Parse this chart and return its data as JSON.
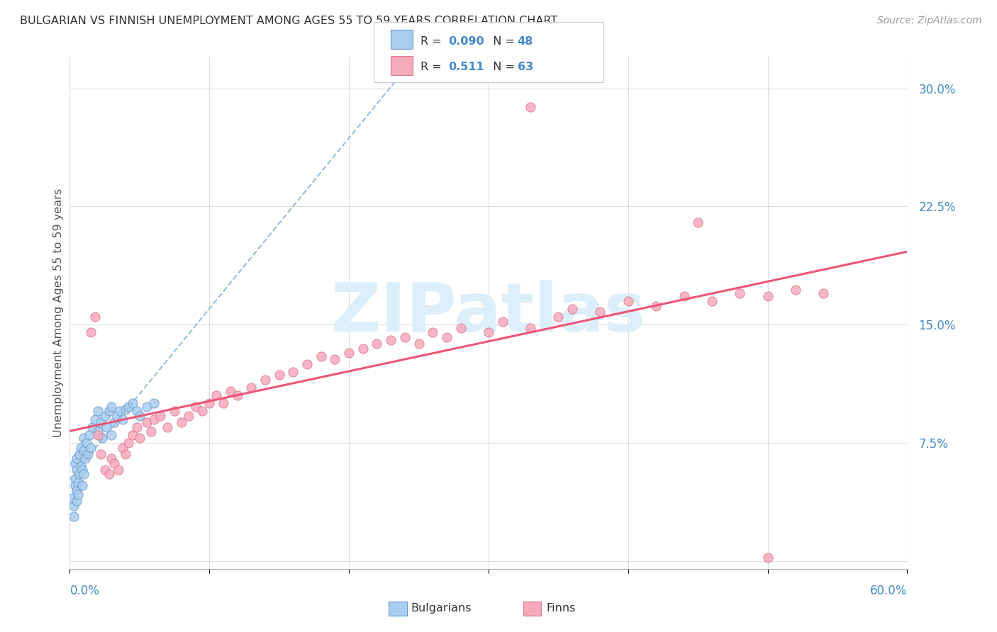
{
  "title": "BULGARIAN VS FINNISH UNEMPLOYMENT AMONG AGES 55 TO 59 YEARS CORRELATION CHART",
  "source": "Source: ZipAtlas.com",
  "ylabel": "Unemployment Among Ages 55 to 59 years",
  "xtick_left": "0.0%",
  "xtick_right": "60.0%",
  "xlim": [
    0.0,
    0.6
  ],
  "ylim": [
    -0.005,
    0.32
  ],
  "ytick_vals": [
    0.0,
    0.075,
    0.15,
    0.225,
    0.3
  ],
  "ytick_labels": [
    "",
    "7.5%",
    "15.0%",
    "22.5%",
    "30.0%"
  ],
  "grid_color": "#dddddd",
  "bg_color": "#ffffff",
  "bulgarians_face": "#aaccee",
  "bulgarians_edge": "#6699cc",
  "finns_face": "#f5aabb",
  "finns_edge": "#dd7788",
  "bulg_line_color": "#99bbdd",
  "finn_line_color": "#ee5577",
  "label_color": "#4488cc",
  "title_color": "#333333",
  "source_color": "#999999",
  "ylabel_color": "#555555",
  "watermark_color": "#dceefa",
  "legend_R_bulg": "0.090",
  "legend_N_bulg": "48",
  "legend_R_finn": "0.511",
  "legend_N_finn": "63",
  "bulgarians_x": [
    0.002,
    0.003,
    0.003,
    0.004,
    0.004,
    0.004,
    0.005,
    0.005,
    0.005,
    0.005,
    0.006,
    0.006,
    0.007,
    0.007,
    0.008,
    0.008,
    0.009,
    0.009,
    0.01,
    0.01,
    0.01,
    0.011,
    0.012,
    0.013,
    0.014,
    0.015,
    0.016,
    0.018,
    0.02,
    0.02,
    0.022,
    0.023,
    0.025,
    0.026,
    0.028,
    0.03,
    0.03,
    0.032,
    0.034,
    0.036,
    0.038,
    0.04,
    0.042,
    0.045,
    0.048,
    0.05,
    0.055,
    0.06
  ],
  "bulgarians_y": [
    0.04,
    0.035,
    0.028,
    0.052,
    0.048,
    0.062,
    0.038,
    0.045,
    0.058,
    0.065,
    0.05,
    0.042,
    0.068,
    0.055,
    0.06,
    0.072,
    0.058,
    0.048,
    0.07,
    0.078,
    0.055,
    0.065,
    0.075,
    0.068,
    0.08,
    0.072,
    0.085,
    0.09,
    0.095,
    0.082,
    0.088,
    0.078,
    0.092,
    0.085,
    0.095,
    0.08,
    0.098,
    0.088,
    0.092,
    0.095,
    0.09,
    0.096,
    0.098,
    0.1,
    0.095,
    0.092,
    0.098,
    0.1
  ],
  "finns_x": [
    0.015,
    0.018,
    0.02,
    0.022,
    0.025,
    0.028,
    0.03,
    0.032,
    0.035,
    0.038,
    0.04,
    0.042,
    0.045,
    0.048,
    0.05,
    0.055,
    0.058,
    0.06,
    0.065,
    0.07,
    0.075,
    0.08,
    0.085,
    0.09,
    0.095,
    0.1,
    0.105,
    0.11,
    0.115,
    0.12,
    0.13,
    0.14,
    0.15,
    0.16,
    0.17,
    0.18,
    0.19,
    0.2,
    0.21,
    0.22,
    0.23,
    0.24,
    0.25,
    0.26,
    0.27,
    0.28,
    0.3,
    0.31,
    0.33,
    0.35,
    0.36,
    0.38,
    0.4,
    0.42,
    0.44,
    0.46,
    0.48,
    0.5,
    0.52,
    0.54,
    0.33,
    0.45,
    0.5
  ],
  "finns_y": [
    0.145,
    0.155,
    0.08,
    0.068,
    0.058,
    0.055,
    0.065,
    0.062,
    0.058,
    0.072,
    0.068,
    0.075,
    0.08,
    0.085,
    0.078,
    0.088,
    0.082,
    0.09,
    0.092,
    0.085,
    0.095,
    0.088,
    0.092,
    0.098,
    0.095,
    0.1,
    0.105,
    0.1,
    0.108,
    0.105,
    0.11,
    0.115,
    0.118,
    0.12,
    0.125,
    0.13,
    0.128,
    0.132,
    0.135,
    0.138,
    0.14,
    0.142,
    0.138,
    0.145,
    0.142,
    0.148,
    0.145,
    0.152,
    0.148,
    0.155,
    0.16,
    0.158,
    0.165,
    0.162,
    0.168,
    0.165,
    0.17,
    0.168,
    0.172,
    0.17,
    0.288,
    0.215,
    0.002
  ]
}
